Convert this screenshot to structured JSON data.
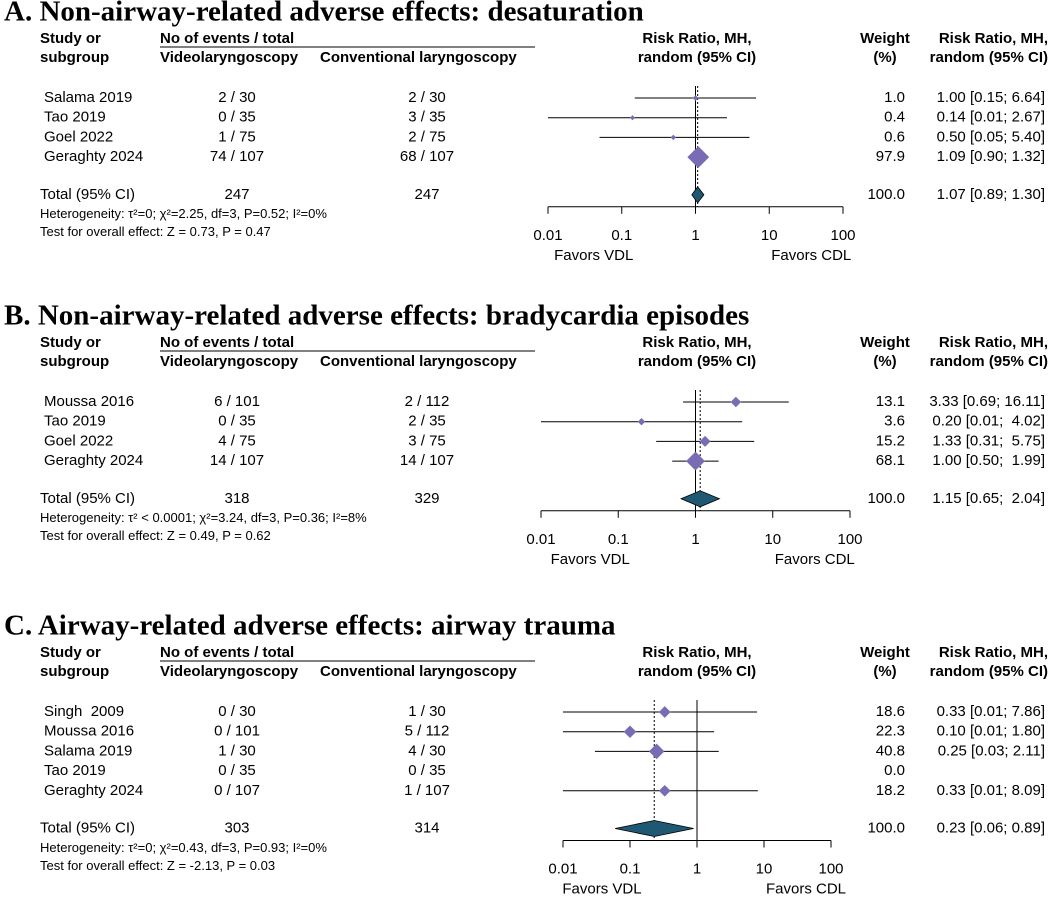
{
  "chart_data": [
    {
      "type": "forest",
      "title": "A. Non-airway-related adverse effects: desaturation",
      "columns": {
        "study": "Study or",
        "study2": "subgroup",
        "events": "No of events / total",
        "group1": "Videolaryngoscopy",
        "group2": "Conventional laryngoscopy",
        "effect": "Risk Ratio, MH,",
        "effect2": "random (95% CI)",
        "weight": "Weight",
        "weight2": "(%)",
        "ci": "Risk Ratio, MH,",
        "ci2": "random (95% CI)"
      },
      "studies": [
        "Salama 2019",
        "Tao 2019",
        "Goel 2022",
        "Geraghty 2024"
      ],
      "group1": [
        "2 / 30",
        "0 / 35",
        "1 / 75",
        "74 / 107"
      ],
      "group2": [
        "2 / 30",
        "3 / 35",
        "2 / 75",
        "68 / 107"
      ],
      "weights": [
        1.0,
        0.4,
        0.6,
        97.9
      ],
      "weight_labels": [
        "1.0",
        "0.4",
        "0.6",
        "97.9"
      ],
      "values": [
        1.0,
        0.14,
        0.5,
        1.09
      ],
      "lower": [
        0.15,
        0.01,
        0.05,
        0.9
      ],
      "upper": [
        6.64,
        2.67,
        5.4,
        1.32
      ],
      "value_labels": [
        "1.00 [0.15; 6.64]",
        "0.14 [0.01; 2.67]",
        "0.50 [0.05; 5.40]",
        "1.09 [0.90; 1.32]"
      ],
      "total": {
        "label": "Total (95% CI)",
        "group1": "247",
        "group2": "247",
        "weight_label": "100.0",
        "value": 1.07,
        "lower": 0.89,
        "upper": 1.3,
        "value_label": "1.07 [0.89; 1.30]"
      },
      "heterogeneity": "Heterogeneity: τ²=0; χ²=2.25, df=3, P=0.52; I²=0%",
      "overall_effect": "Test for overall effect: Z = 0.73, P = 0.47",
      "xlim": [
        0.01,
        100
      ],
      "xticks": [
        0.01,
        0.1,
        1,
        10,
        100
      ],
      "log_scale": true,
      "favors_left": "Favors VDL",
      "favors_right": "Favors CDL",
      "color": "#7a6cb4",
      "total_color": "#1e5873"
    },
    {
      "type": "forest",
      "title": "B. Non-airway-related adverse effects: bradycardia episodes",
      "columns": {
        "study": "Study or",
        "study2": "subgroup",
        "events": "No of events / total",
        "group1": "Videolaryngoscopy",
        "group2": "Conventional laryngoscopy",
        "effect": "Risk Ratio, MH,",
        "effect2": "random (95% CI)",
        "weight": "Weight",
        "weight2": "(%)",
        "ci": "Risk Ratio, MH,",
        "ci2": "random (95% CI)"
      },
      "studies": [
        "Moussa 2016",
        "Tao 2019",
        "Goel 2022",
        "Geraghty 2024"
      ],
      "group1": [
        "6 / 101",
        "0 / 35",
        "4 / 75",
        "14 / 107"
      ],
      "group2": [
        "2 / 112",
        "2 / 35",
        "3 / 75",
        "14 / 107"
      ],
      "weights": [
        13.1,
        3.6,
        15.2,
        68.1
      ],
      "weight_labels": [
        "13.1",
        "3.6",
        "15.2",
        "68.1"
      ],
      "values": [
        3.33,
        0.2,
        1.33,
        1.0
      ],
      "lower": [
        0.69,
        0.01,
        0.31,
        0.5
      ],
      "upper": [
        16.11,
        4.02,
        5.75,
        1.99
      ],
      "value_labels": [
        "3.33 [0.69; 16.11]",
        "0.20 [0.01;  4.02]",
        "1.33 [0.31;  5.75]",
        "1.00 [0.50;  1.99]"
      ],
      "total": {
        "label": "Total (95% CI)",
        "group1": "318",
        "group2": "329",
        "weight_label": "100.0",
        "value": 1.15,
        "lower": 0.65,
        "upper": 2.04,
        "value_label": "1.15 [0.65;  2.04]"
      },
      "heterogeneity": "Heterogeneity: τ² < 0.0001; χ²=3.24, df=3, P=0.36; I²=8%",
      "overall_effect": "Test for overall effect: Z = 0.49, P = 0.62",
      "xlim": [
        0.01,
        100
      ],
      "xticks": [
        0.01,
        0.1,
        1,
        10,
        100
      ],
      "log_scale": true,
      "favors_left": "Favors VDL",
      "favors_right": "Favors CDL",
      "color": "#7a6cb4",
      "total_color": "#1e5873"
    },
    {
      "type": "forest",
      "title": "C. Airway-related adverse effects: airway trauma",
      "columns": {
        "study": "Study or",
        "study2": "subgroup",
        "events": "No of events / total",
        "group1": "Videolaryngoscopy",
        "group2": "Conventional laryngoscopy",
        "effect": "Risk Ratio, MH,",
        "effect2": "random (95% CI)",
        "weight": "Weight",
        "weight2": "(%)",
        "ci": "Risk Ratio, MH,",
        "ci2": "random (95% CI)"
      },
      "studies": [
        "Singh  2009",
        "Moussa 2016",
        "Salama 2019",
        "Tao 2019",
        "Geraghty 2024"
      ],
      "group1": [
        "0 / 30",
        "0 / 101",
        "1 / 30",
        "0 / 35",
        "0 / 107"
      ],
      "group2": [
        "1 / 30",
        "5 / 112",
        "4 / 30",
        "0 / 35",
        "1 / 107"
      ],
      "weights": [
        18.6,
        22.3,
        40.8,
        0.0,
        18.2
      ],
      "weight_labels": [
        "18.6",
        "22.3",
        "40.8",
        "0.0",
        "18.2"
      ],
      "values": [
        0.33,
        0.1,
        0.25,
        null,
        0.33
      ],
      "lower": [
        0.01,
        0.01,
        0.03,
        null,
        0.01
      ],
      "upper": [
        7.86,
        1.8,
        2.11,
        null,
        8.09
      ],
      "value_labels": [
        "0.33 [0.01; 7.86]",
        "0.10 [0.01; 1.80]",
        "0.25 [0.03; 2.11]",
        null,
        "0.33 [0.01; 8.09]"
      ],
      "total": {
        "label": "Total (95% CI)",
        "group1": "303",
        "group2": "314",
        "weight_label": "100.0",
        "value": 0.23,
        "lower": 0.06,
        "upper": 0.89,
        "value_label": "0.23 [0.06; 0.89]"
      },
      "heterogeneity": "Heterogeneity: τ²=0; χ²=0.43, df=3, P=0.93; I²=0%",
      "overall_effect": "Test for overall effect: Z = -2.13, P = 0.03",
      "xlim": [
        0.01,
        100
      ],
      "xticks": [
        0.01,
        0.1,
        1,
        10,
        100
      ],
      "log_scale": true,
      "favors_left": "Favors VDL",
      "favors_right": "Favors CDL",
      "color": "#7a6cb4",
      "total_color": "#1e5873"
    }
  ]
}
